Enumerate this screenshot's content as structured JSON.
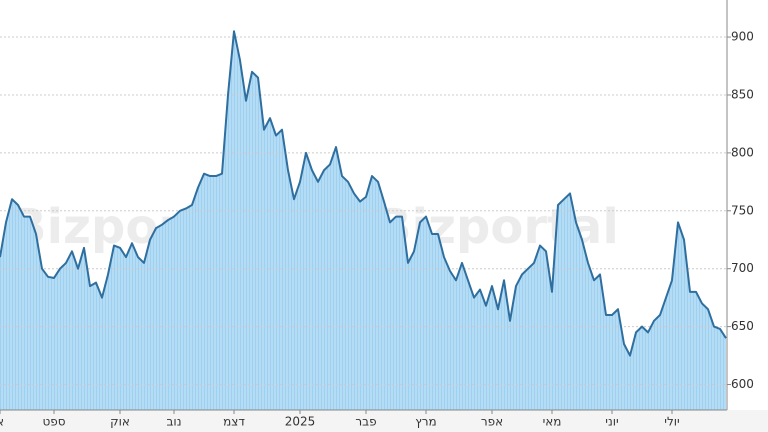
{
  "chart_data": {
    "type": "area",
    "watermark": "Bizportal",
    "categories": [
      "א",
      null,
      null,
      null,
      null,
      null,
      null,
      null,
      null,
      "ספט",
      null,
      null,
      null,
      null,
      null,
      null,
      null,
      null,
      null,
      null,
      "אוק",
      null,
      null,
      null,
      null,
      null,
      null,
      null,
      null,
      "נוב",
      null,
      null,
      null,
      null,
      null,
      null,
      null,
      null,
      null,
      "דצמ",
      null,
      null,
      null,
      null,
      null,
      null,
      null,
      null,
      null,
      null,
      "2025",
      null,
      null,
      null,
      null,
      null,
      null,
      null,
      null,
      null,
      null,
      "פבר",
      null,
      null,
      null,
      null,
      null,
      null,
      null,
      null,
      null,
      "מרץ",
      null,
      null,
      null,
      null,
      null,
      null,
      null,
      null,
      null,
      null,
      "אפר",
      null,
      null,
      null,
      null,
      null,
      null,
      null,
      null,
      null,
      "מאי",
      null,
      null,
      null,
      null,
      null,
      null,
      null,
      null,
      null,
      "יוני",
      null,
      null,
      null,
      null,
      null,
      null,
      null,
      null,
      null,
      "יולי",
      null,
      null,
      null,
      null,
      null,
      null,
      null,
      null,
      null
    ],
    "series": [
      {
        "color": "#2f6f9f",
        "values": [
          710,
          740,
          760,
          755,
          745,
          745,
          730,
          700,
          693,
          692,
          700,
          705,
          715,
          700,
          718,
          685,
          688,
          675,
          695,
          720,
          718,
          710,
          722,
          710,
          705,
          725,
          735,
          738,
          742,
          745,
          750,
          752,
          755,
          770,
          782,
          780,
          780,
          782,
          850,
          905,
          880,
          845,
          870,
          865,
          820,
          830,
          815,
          820,
          785,
          760,
          775,
          800,
          785,
          775,
          785,
          790,
          805,
          780,
          775,
          765,
          758,
          762,
          780,
          775,
          758,
          740,
          745,
          745,
          705,
          715,
          740,
          745,
          730,
          730,
          710,
          698,
          690,
          705,
          690,
          675,
          682,
          668,
          685,
          665,
          690,
          655,
          685,
          695,
          700,
          705,
          720,
          715,
          680,
          755,
          760,
          765,
          740,
          725,
          705,
          690,
          695,
          660,
          660,
          665,
          635,
          625,
          645,
          650,
          645,
          655,
          660,
          675,
          690,
          740,
          725,
          680,
          680,
          670,
          665,
          650,
          648,
          640
        ]
      }
    ],
    "ylim": [
      578,
      932
    ],
    "yticks": [
      600,
      650,
      700,
      750,
      800,
      850,
      900
    ],
    "grid": true,
    "y_axis_side": "right"
  }
}
